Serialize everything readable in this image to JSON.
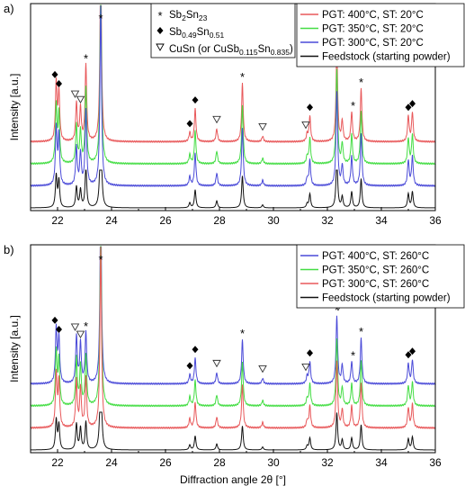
{
  "chart_data": [
    {
      "type": "line",
      "panel_label": "a)",
      "xlabel": "",
      "ylabel": "Intensity [a.u.]",
      "xlim": [
        21,
        36
      ],
      "x_ticks": [
        22,
        24,
        26,
        28,
        30,
        32,
        34,
        36
      ],
      "legend_position": "top-right",
      "series": [
        {
          "name": "PGT: 400°C, ST: 20°C",
          "color": "#e8585a",
          "offset": 3
        },
        {
          "name": "PGT: 350°C, ST: 20°C",
          "color": "#44dd44",
          "offset": 2
        },
        {
          "name": "PGT: 300°C, ST: 20°C",
          "color": "#4a4ad8",
          "offset": 1
        },
        {
          "name": "Feedstock (starting powder)",
          "color": "#111111",
          "offset": 0
        }
      ],
      "peaks": [
        {
          "x": 21.95,
          "h": 0.32
        },
        {
          "x": 22.05,
          "h": 0.27
        },
        {
          "x": 22.7,
          "h": 0.21
        },
        {
          "x": 22.85,
          "h": 0.18
        },
        {
          "x": 23.05,
          "h": 0.42
        },
        {
          "x": 23.6,
          "h": 1.0
        },
        {
          "x": 26.9,
          "h": 0.05
        },
        {
          "x": 27.1,
          "h": 0.18
        },
        {
          "x": 27.9,
          "h": 0.07
        },
        {
          "x": 28.85,
          "h": 0.32
        },
        {
          "x": 29.6,
          "h": 0.03
        },
        {
          "x": 31.25,
          "h": 0.04
        },
        {
          "x": 31.35,
          "h": 0.14
        },
        {
          "x": 32.35,
          "h": 0.52
        },
        {
          "x": 32.55,
          "h": 0.11
        },
        {
          "x": 32.9,
          "h": 0.16
        },
        {
          "x": 33.25,
          "h": 0.29
        },
        {
          "x": 35.0,
          "h": 0.14
        },
        {
          "x": 35.15,
          "h": 0.16
        }
      ],
      "annotations": [
        {
          "symbol": "*",
          "x": 23.6
        },
        {
          "symbol": "*",
          "x": 23.05
        },
        {
          "symbol": "*",
          "x": 28.85
        },
        {
          "symbol": "*",
          "x": 32.35
        },
        {
          "symbol": "*",
          "x": 32.95
        },
        {
          "symbol": "*",
          "x": 33.25
        },
        {
          "symbol": "◆",
          "x": 21.9
        },
        {
          "symbol": "◆",
          "x": 22.05
        },
        {
          "symbol": "◆",
          "x": 26.9
        },
        {
          "symbol": "◆",
          "x": 27.1
        },
        {
          "symbol": "◆",
          "x": 31.35
        },
        {
          "symbol": "◆",
          "x": 35.0
        },
        {
          "symbol": "◆",
          "x": 35.15
        },
        {
          "symbol": "▽",
          "x": 22.65
        },
        {
          "symbol": "▽",
          "x": 22.85
        },
        {
          "symbol": "▽",
          "x": 27.9
        },
        {
          "symbol": "▽",
          "x": 29.6
        },
        {
          "symbol": "▽",
          "x": 31.2
        },
        {
          "symbol": "▽",
          "x": 32.4
        }
      ],
      "phase_legend": [
        {
          "symbol": "*",
          "base": "Sb",
          "sub1": "2",
          "mid": "Sn",
          "sub2": "23",
          "tail": ""
        },
        {
          "symbol": "◆",
          "base": "Sb",
          "sub1": "0.49",
          "mid": "Sn",
          "sub2": "0.51",
          "tail": ""
        },
        {
          "symbol": "▽",
          "base": "CuSn (or CuSb",
          "sub1": "0.115",
          "mid": "Sn",
          "sub2": "0.835",
          "tail": ")"
        }
      ]
    },
    {
      "type": "line",
      "panel_label": "b)",
      "xlabel": "Diffraction angle 2θ [°]",
      "ylabel": "Intensity [a.u.]",
      "xlim": [
        21,
        36
      ],
      "x_ticks": [
        22,
        24,
        26,
        28,
        30,
        32,
        34,
        36
      ],
      "legend_position": "top-right",
      "series": [
        {
          "name": "PGT: 400°C, ST: 260°C",
          "color": "#4a4ad8",
          "offset": 3
        },
        {
          "name": "PGT: 350°C, ST: 260°C",
          "color": "#44dd44",
          "offset": 2
        },
        {
          "name": "PGT: 300°C, ST: 260°C",
          "color": "#e8585a",
          "offset": 1
        },
        {
          "name": "Feedstock (starting powder)",
          "color": "#111111",
          "offset": 0
        }
      ],
      "peaks": [
        {
          "x": 21.95,
          "h": 0.3
        },
        {
          "x": 22.05,
          "h": 0.25
        },
        {
          "x": 22.7,
          "h": 0.26
        },
        {
          "x": 22.85,
          "h": 0.22
        },
        {
          "x": 23.05,
          "h": 0.28
        },
        {
          "x": 23.6,
          "h": 1.0
        },
        {
          "x": 26.9,
          "h": 0.05
        },
        {
          "x": 27.1,
          "h": 0.14
        },
        {
          "x": 27.9,
          "h": 0.06
        },
        {
          "x": 28.85,
          "h": 0.24
        },
        {
          "x": 29.6,
          "h": 0.03
        },
        {
          "x": 31.25,
          "h": 0.04
        },
        {
          "x": 31.35,
          "h": 0.12
        },
        {
          "x": 32.35,
          "h": 0.37
        },
        {
          "x": 32.55,
          "h": 0.1
        },
        {
          "x": 32.9,
          "h": 0.12
        },
        {
          "x": 33.25,
          "h": 0.25
        },
        {
          "x": 35.0,
          "h": 0.11
        },
        {
          "x": 35.15,
          "h": 0.13
        }
      ],
      "annotations": [
        {
          "symbol": "*",
          "x": 23.6
        },
        {
          "symbol": "*",
          "x": 23.05
        },
        {
          "symbol": "*",
          "x": 28.85
        },
        {
          "symbol": "*",
          "x": 32.35
        },
        {
          "symbol": "*",
          "x": 32.95
        },
        {
          "symbol": "*",
          "x": 33.25
        },
        {
          "symbol": "◆",
          "x": 21.9
        },
        {
          "symbol": "◆",
          "x": 22.05
        },
        {
          "symbol": "◆",
          "x": 26.9
        },
        {
          "symbol": "◆",
          "x": 27.1
        },
        {
          "symbol": "◆",
          "x": 31.35
        },
        {
          "symbol": "◆",
          "x": 35.0
        },
        {
          "symbol": "◆",
          "x": 35.15
        },
        {
          "symbol": "▽",
          "x": 22.65
        },
        {
          "symbol": "▽",
          "x": 22.85
        },
        {
          "symbol": "▽",
          "x": 27.9
        },
        {
          "symbol": "▽",
          "x": 29.6
        },
        {
          "symbol": "▽",
          "x": 31.2
        },
        {
          "symbol": "▽",
          "x": 32.4
        }
      ]
    }
  ]
}
